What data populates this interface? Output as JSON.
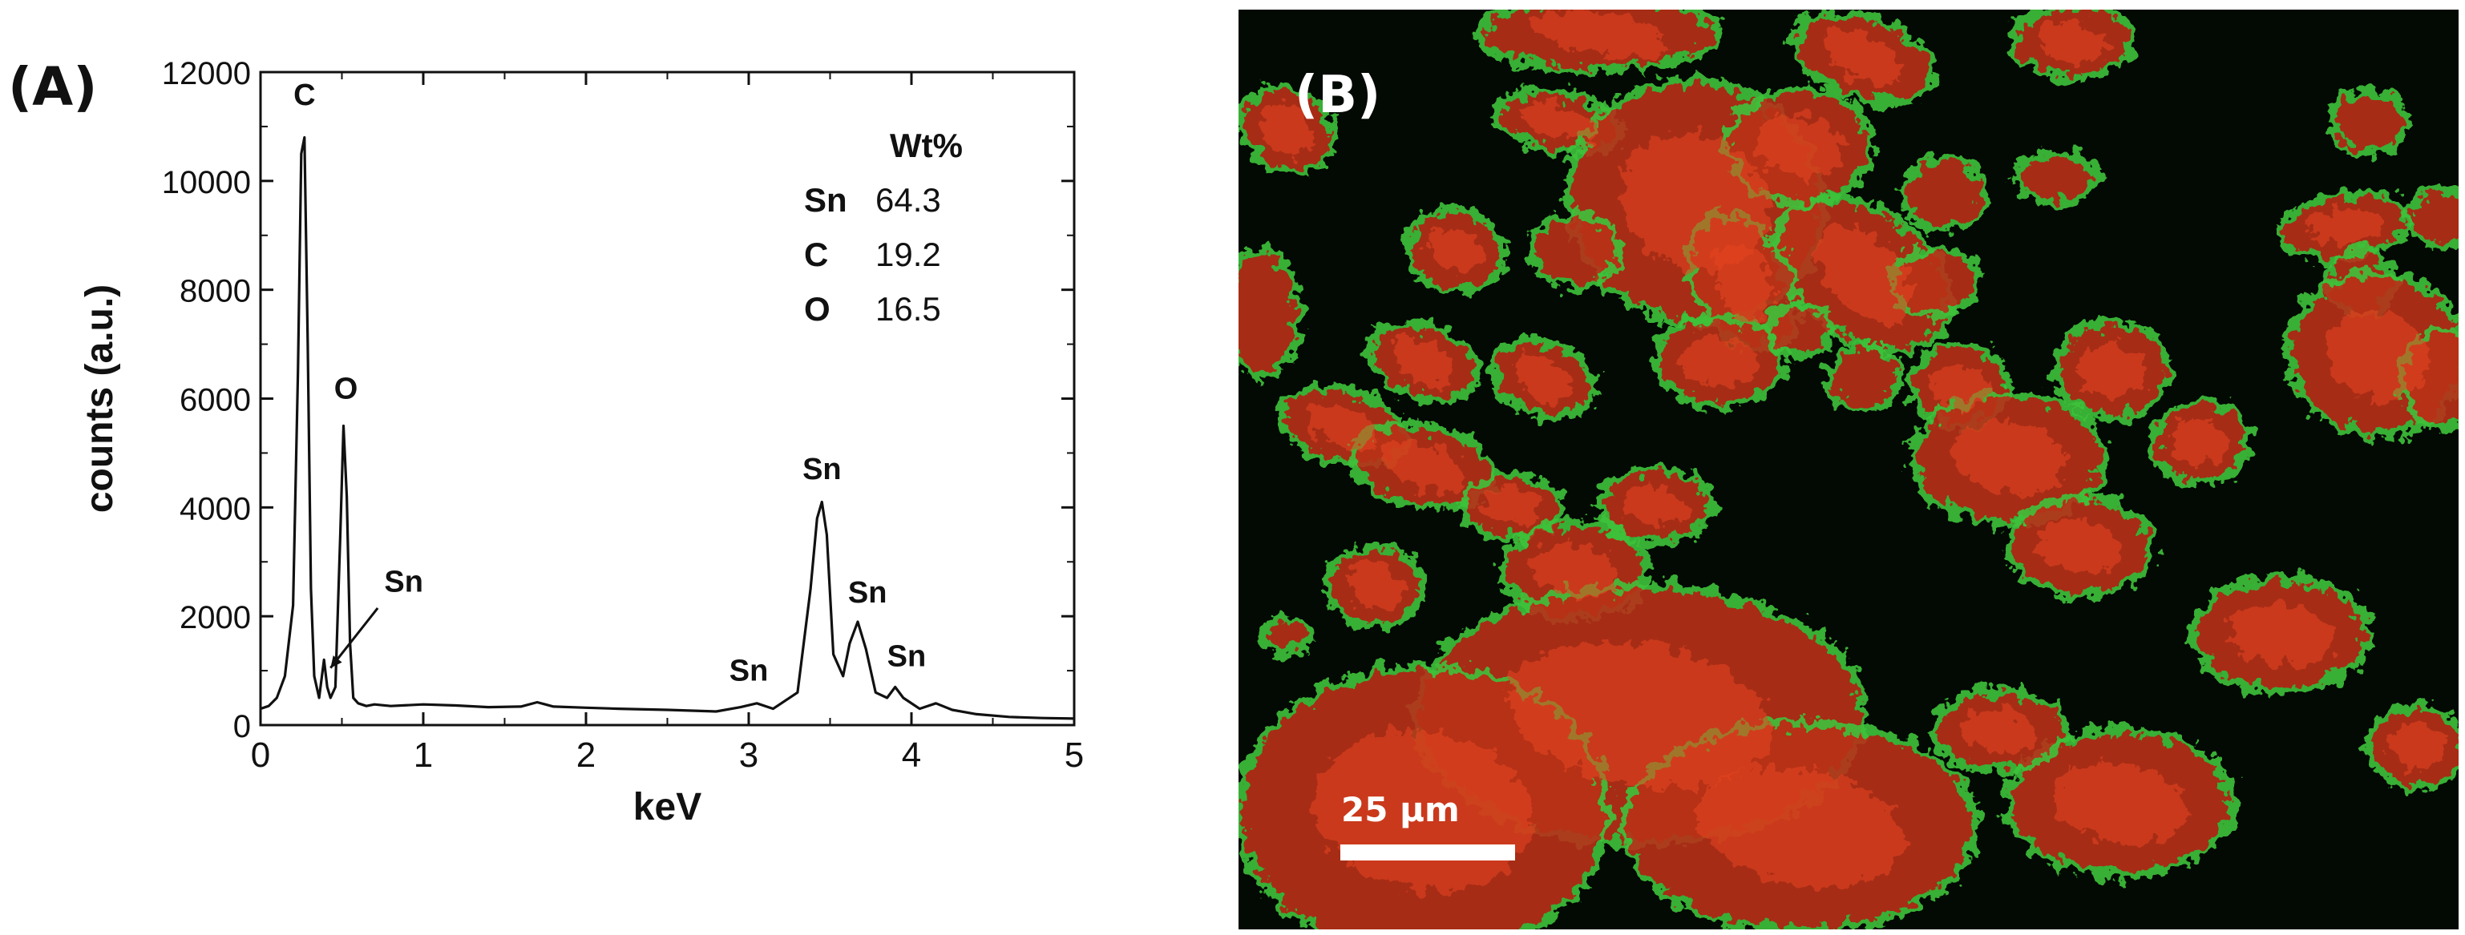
{
  "panel_a": {
    "label": "(A)",
    "wt_table": {
      "header": "Wt%",
      "rows": [
        {
          "element": "Sn",
          "value": "64.3"
        },
        {
          "element": "C",
          "value": "19.2"
        },
        {
          "element": "O",
          "value": "16.5"
        }
      ]
    }
  },
  "panel_b": {
    "label": "(B)",
    "scale_bar_label": "25 μm"
  },
  "chart_data": {
    "type": "line",
    "title": "",
    "xlabel": "keV",
    "ylabel": "counts (a.u.)",
    "xlim": [
      0,
      5
    ],
    "ylim": [
      0,
      12000
    ],
    "x_ticks": [
      0,
      1,
      2,
      3,
      4,
      5
    ],
    "y_ticks": [
      0,
      2000,
      4000,
      6000,
      8000,
      10000,
      12000
    ],
    "grid": false,
    "series": [
      {
        "x": [
          0.0,
          0.05,
          0.1,
          0.15,
          0.2,
          0.23,
          0.25,
          0.27,
          0.29,
          0.31,
          0.33,
          0.36,
          0.39,
          0.41,
          0.43,
          0.46,
          0.49,
          0.51,
          0.53,
          0.55,
          0.57,
          0.6,
          0.65,
          0.7,
          0.8,
          1.0,
          1.2,
          1.4,
          1.6,
          1.7,
          1.75,
          1.8,
          2.0,
          2.2,
          2.5,
          2.8,
          2.95,
          3.05,
          3.15,
          3.3,
          3.38,
          3.42,
          3.45,
          3.48,
          3.52,
          3.58,
          3.62,
          3.67,
          3.72,
          3.78,
          3.85,
          3.9,
          3.95,
          4.05,
          4.15,
          4.25,
          4.4,
          4.6,
          4.8,
          5.0
        ],
        "y": [
          300,
          350,
          500,
          900,
          2200,
          6500,
          10500,
          10800,
          7000,
          2500,
          900,
          500,
          1200,
          700,
          500,
          700,
          3500,
          5500,
          4200,
          1500,
          500,
          400,
          350,
          380,
          350,
          380,
          360,
          330,
          340,
          420,
          380,
          340,
          320,
          300,
          280,
          250,
          330,
          400,
          300,
          600,
          2500,
          3800,
          4100,
          3500,
          1300,
          900,
          1500,
          1900,
          1400,
          600,
          500,
          700,
          500,
          300,
          400,
          280,
          200,
          150,
          130,
          120
        ]
      }
    ],
    "annotations": [
      {
        "text": "C",
        "x": 0.27,
        "y": 11400
      },
      {
        "text": "O",
        "x": 0.525,
        "y": 6000
      },
      {
        "text": "Sn",
        "x": 0.88,
        "y": 2450
      },
      {
        "text": "Sn",
        "x": 3.0,
        "y": 820
      },
      {
        "text": "Sn",
        "x": 3.45,
        "y": 4520
      },
      {
        "text": "Sn",
        "x": 3.73,
        "y": 2250
      },
      {
        "text": "Sn",
        "x": 3.97,
        "y": 1080
      }
    ],
    "arrow": {
      "from": [
        0.72,
        2150
      ],
      "to": [
        0.43,
        1050
      ]
    }
  }
}
